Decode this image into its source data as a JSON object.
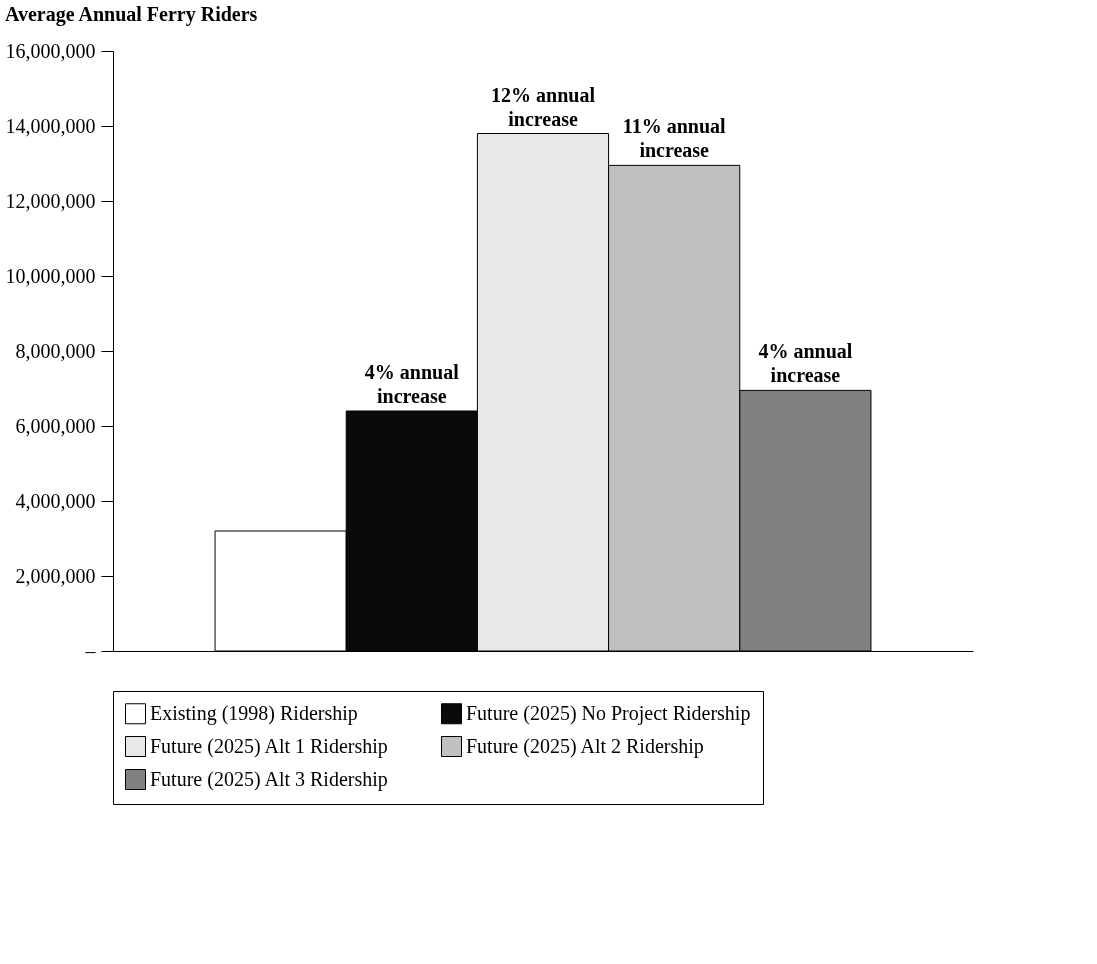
{
  "chart_data": {
    "type": "bar",
    "title": "Average Annual Ferry Riders",
    "categories": [
      null
    ],
    "series": [
      {
        "name": "Existing (1998) Ridership",
        "color": "#ffffff",
        "values": [
          3200000
        ]
      },
      {
        "name": "Future (2025) No Project Ridership",
        "color": "#0a0a0a",
        "values": [
          6400000
        ]
      },
      {
        "name": "Future (2025) Alt 1 Ridership",
        "color": "#e8e8e8",
        "values": [
          13800000
        ]
      },
      {
        "name": "Future (2025) Alt 2 Ridership",
        "color": "#c0c0c0",
        "values": [
          12950000
        ]
      },
      {
        "name": "Future (2025) Alt 3 Ridership",
        "color": "#808080",
        "values": [
          6950000
        ]
      }
    ],
    "annotations": [
      {
        "text": "4% annual\nincrease",
        "y": 6400000
      },
      {
        "text": "12% annual\nincrease",
        "y": 13800000
      },
      {
        "text": "11% annual\nincrease",
        "y": 12950000
      },
      {
        "text": "4% annual\nincrease",
        "y": 6950000
      }
    ],
    "ylim": [
      0,
      16000000
    ],
    "yticks": [
      {
        "value": 0,
        "label": "–"
      },
      {
        "value": 2000000,
        "label": "2,000,000"
      },
      {
        "value": 4000000,
        "label": "4,000,000"
      },
      {
        "value": 6000000,
        "label": "6,000,000"
      },
      {
        "value": 8000000,
        "label": "8,000,000"
      },
      {
        "value": 10000000,
        "label": "10,000,000"
      },
      {
        "value": 12000000,
        "label": "12,000,000"
      },
      {
        "value": 14000000,
        "label": "14,000,000"
      },
      {
        "value": 16000000,
        "label": "16,000,000"
      }
    ],
    "grid": false,
    "legend": "bottom",
    "tick_labels": "y"
  }
}
